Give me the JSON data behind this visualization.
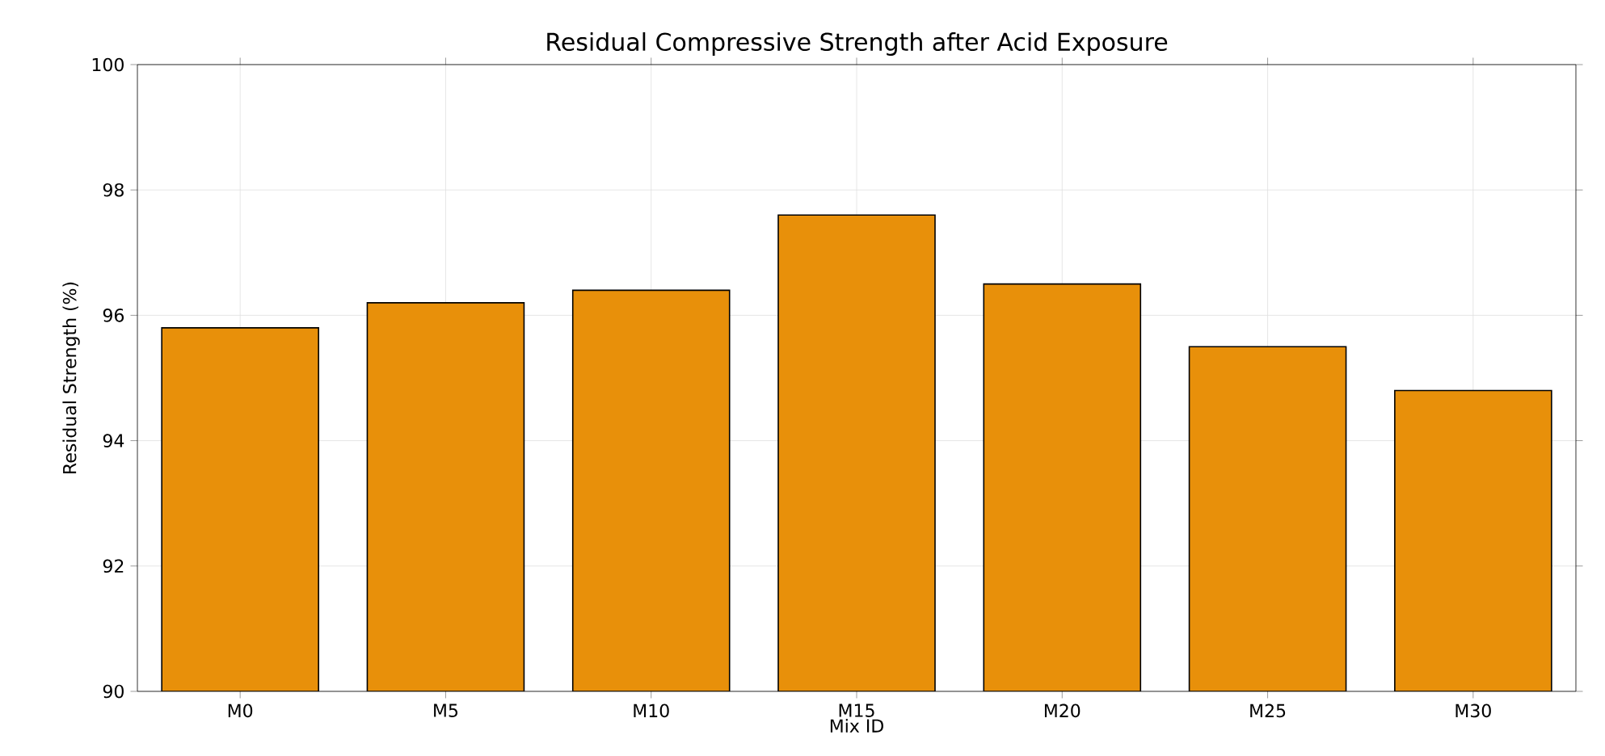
{
  "chart_data": {
    "type": "bar",
    "title": "Residual Compressive Strength after Acid Exposure",
    "xlabel": "Mix ID",
    "ylabel": "Residual Strength (%)",
    "categories": [
      "M0",
      "M5",
      "M10",
      "M15",
      "M20",
      "M25",
      "M30"
    ],
    "values": [
      95.8,
      96.2,
      96.4,
      97.6,
      96.5,
      95.5,
      94.8
    ],
    "color": "#e8900a",
    "ylim": [
      90,
      100
    ],
    "yticks": [
      90,
      92,
      94,
      96,
      98,
      100
    ],
    "grid": true
  }
}
